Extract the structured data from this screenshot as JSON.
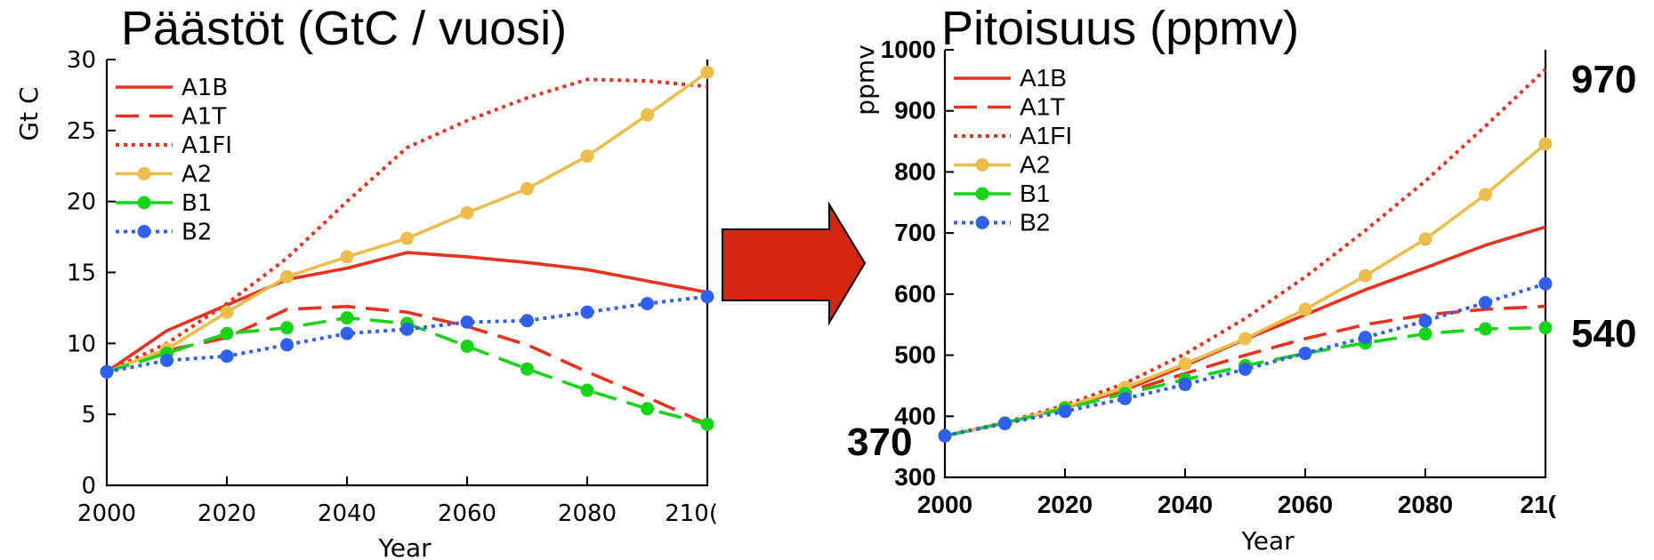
{
  "chart_data": [
    {
      "type": "line",
      "title": "Päästöt (GtC / vuosi)",
      "xlabel": "Year",
      "ylabel": "Gt C",
      "xlim": [
        2000,
        2100
      ],
      "ylim": [
        0,
        30
      ],
      "x_ticks": [
        "2000",
        "2020",
        "2040",
        "2060",
        "2080",
        "210("
      ],
      "y_ticks": [
        "0",
        "5",
        "10",
        "15",
        "20",
        "25",
        "30"
      ],
      "grid": false,
      "legend": "top-left",
      "series": [
        {
          "name": "A1B",
          "color": "#e8321e",
          "style": "solid",
          "markers": false,
          "x": [
            2000,
            2010,
            2020,
            2030,
            2040,
            2050,
            2060,
            2070,
            2080,
            2090,
            2100
          ],
          "y": [
            8.0,
            10.9,
            12.7,
            14.5,
            15.3,
            16.4,
            16.1,
            15.7,
            15.2,
            14.4,
            13.6
          ]
        },
        {
          "name": "A1T",
          "color": "#e8321e",
          "style": "dashed",
          "markers": false,
          "x": [
            2000,
            2010,
            2020,
            2030,
            2040,
            2050,
            2060,
            2070,
            2080,
            2090,
            2100
          ],
          "y": [
            8.0,
            9.5,
            10.4,
            12.4,
            12.6,
            12.2,
            11.2,
            9.9,
            8.0,
            6.2,
            4.3
          ]
        },
        {
          "name": "A1FI",
          "color": "#e8321e",
          "style": "dotted",
          "markers": false,
          "x": [
            2000,
            2010,
            2020,
            2030,
            2040,
            2050,
            2060,
            2070,
            2080,
            2090,
            2100
          ],
          "y": [
            8.0,
            10.0,
            12.8,
            16.0,
            20.0,
            23.8,
            25.7,
            27.3,
            28.6,
            28.5,
            28.1
          ]
        },
        {
          "name": "A2",
          "color": "#ecbd4a",
          "style": "solid",
          "markers": true,
          "x": [
            2000,
            2010,
            2020,
            2030,
            2040,
            2050,
            2060,
            2070,
            2080,
            2090,
            2100
          ],
          "y": [
            8.0,
            9.6,
            12.2,
            14.7,
            16.1,
            17.4,
            19.2,
            20.9,
            23.2,
            26.1,
            29.1
          ]
        },
        {
          "name": "B1",
          "color": "#18d418",
          "style": "dashed",
          "markers": true,
          "x": [
            2000,
            2010,
            2020,
            2030,
            2040,
            2050,
            2060,
            2070,
            2080,
            2090,
            2100
          ],
          "y": [
            8.0,
            9.3,
            10.7,
            11.1,
            11.8,
            11.4,
            9.8,
            8.2,
            6.7,
            5.4,
            4.3
          ]
        },
        {
          "name": "B2",
          "color": "#3060ee",
          "style": "dotted",
          "markers": true,
          "x": [
            2000,
            2010,
            2020,
            2030,
            2040,
            2050,
            2060,
            2070,
            2080,
            2090,
            2100
          ],
          "y": [
            8.0,
            8.8,
            9.1,
            9.9,
            10.7,
            11.0,
            11.5,
            11.6,
            12.2,
            12.8,
            13.3
          ]
        }
      ]
    },
    {
      "type": "line",
      "title": "Pitoisuus (ppmv)",
      "xlabel": "Year",
      "ylabel": "ppmv",
      "xlim": [
        2000,
        2100
      ],
      "ylim": [
        300,
        1000
      ],
      "x_ticks": [
        "2000",
        "2020",
        "2040",
        "2060",
        "2080",
        "21("
      ],
      "y_ticks": [
        "300",
        "400",
        "500",
        "600",
        "700",
        "800",
        "900",
        "1000"
      ],
      "grid": false,
      "legend": "top-left",
      "annotations": [
        "970",
        "540",
        "370"
      ],
      "series": [
        {
          "name": "A1B",
          "color": "#e8321e",
          "style": "solid",
          "markers": false,
          "x": [
            2000,
            2010,
            2020,
            2030,
            2040,
            2050,
            2060,
            2070,
            2080,
            2090,
            2100
          ],
          "y": [
            368,
            389,
            414,
            443,
            483,
            526,
            566,
            607,
            643,
            680,
            710
          ]
        },
        {
          "name": "A1T",
          "color": "#e8321e",
          "style": "dashed",
          "markers": false,
          "x": [
            2000,
            2010,
            2020,
            2030,
            2040,
            2050,
            2060,
            2070,
            2080,
            2090,
            2100
          ],
          "y": [
            368,
            389,
            413,
            439,
            470,
            500,
            527,
            550,
            566,
            575,
            580
          ]
        },
        {
          "name": "A1FI",
          "color": "#e8321e",
          "style": "dotted",
          "markers": false,
          "x": [
            2000,
            2010,
            2020,
            2030,
            2040,
            2050,
            2060,
            2070,
            2080,
            2090,
            2100
          ],
          "y": [
            368,
            390,
            418,
            454,
            502,
            560,
            628,
            704,
            785,
            875,
            968
          ]
        },
        {
          "name": "A2",
          "color": "#ecbd4a",
          "style": "solid",
          "markers": true,
          "x": [
            2000,
            2010,
            2020,
            2030,
            2040,
            2050,
            2060,
            2070,
            2080,
            2090,
            2100
          ],
          "y": [
            368,
            389,
            415,
            447,
            486,
            527,
            575,
            630,
            690,
            763,
            846
          ]
        },
        {
          "name": "B1",
          "color": "#18d418",
          "style": "dashed",
          "markers": true,
          "x": [
            2000,
            2010,
            2020,
            2030,
            2040,
            2050,
            2060,
            2070,
            2080,
            2090,
            2100
          ],
          "y": [
            368,
            389,
            413,
            437,
            460,
            483,
            503,
            520,
            535,
            543,
            545
          ]
        },
        {
          "name": "B2",
          "color": "#3060ee",
          "style": "dotted",
          "markers": true,
          "x": [
            2000,
            2010,
            2020,
            2030,
            2040,
            2050,
            2060,
            2070,
            2080,
            2090,
            2100
          ],
          "y": [
            368,
            388,
            408,
            429,
            452,
            477,
            503,
            529,
            556,
            586,
            617
          ]
        }
      ]
    }
  ]
}
